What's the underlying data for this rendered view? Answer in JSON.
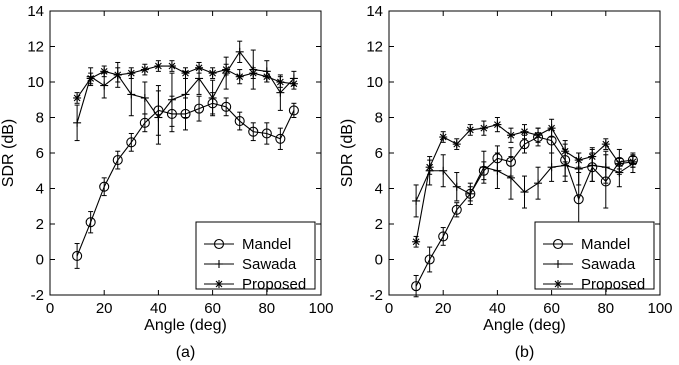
{
  "chart_data": [
    {
      "type": "line",
      "caption": "(a)",
      "xlabel": "Angle (deg)",
      "ylabel": "SDR (dB)",
      "xlim": [
        0,
        100
      ],
      "ylim": [
        -2,
        14
      ],
      "xticks": [
        0,
        20,
        40,
        60,
        80,
        100
      ],
      "yticks": [
        -2,
        0,
        2,
        4,
        6,
        8,
        10,
        12,
        14
      ],
      "legend_position": "bottom-right",
      "grid": false,
      "x": [
        10,
        15,
        20,
        25,
        30,
        35,
        40,
        45,
        50,
        55,
        60,
        65,
        70,
        75,
        80,
        85,
        90
      ],
      "series": [
        {
          "name": "Mandel",
          "marker": "circle",
          "values": [
            0.2,
            2.1,
            4.1,
            5.6,
            6.6,
            7.7,
            8.4,
            8.2,
            8.2,
            8.5,
            8.8,
            8.6,
            7.8,
            7.2,
            7.1,
            6.8,
            8.4
          ],
          "errors": [
            0.7,
            0.6,
            0.5,
            0.5,
            0.5,
            0.5,
            1.4,
            1.0,
            0.9,
            0.7,
            0.6,
            0.5,
            0.5,
            0.5,
            0.6,
            0.6,
            0.4
          ]
        },
        {
          "name": "Sawada",
          "marker": "plus",
          "values": [
            7.7,
            10.3,
            9.8,
            10.4,
            9.3,
            9.1,
            8.0,
            9.0,
            9.3,
            10.2,
            9.1,
            10.5,
            11.7,
            10.7,
            10.6,
            9.4,
            10.2
          ],
          "errors": [
            1.0,
            0.5,
            0.7,
            0.7,
            1.2,
            0.9,
            1.5,
            1.5,
            1.3,
            0.9,
            1.0,
            0.9,
            0.6,
            1.1,
            0.6,
            1.0,
            0.4
          ]
        },
        {
          "name": "Proposed",
          "marker": "star",
          "values": [
            9.1,
            10.2,
            10.6,
            10.4,
            10.5,
            10.7,
            10.9,
            10.9,
            10.5,
            10.8,
            10.5,
            10.7,
            10.3,
            10.5,
            10.3,
            10.0,
            9.9
          ],
          "errors": [
            0.3,
            0.3,
            0.3,
            0.4,
            0.3,
            0.3,
            0.3,
            0.3,
            0.3,
            0.3,
            0.3,
            0.3,
            0.4,
            0.3,
            0.3,
            0.3,
            0.3
          ]
        }
      ]
    },
    {
      "type": "line",
      "caption": "(b)",
      "xlabel": "Angle (deg)",
      "ylabel": "SDR (dB)",
      "xlim": [
        0,
        100
      ],
      "ylim": [
        -2,
        14
      ],
      "xticks": [
        0,
        20,
        40,
        60,
        80,
        100
      ],
      "yticks": [
        -2,
        0,
        2,
        4,
        6,
        8,
        10,
        12,
        14
      ],
      "legend_position": "bottom-right",
      "grid": false,
      "x": [
        10,
        15,
        20,
        25,
        30,
        35,
        40,
        45,
        50,
        55,
        60,
        65,
        70,
        75,
        80,
        85,
        90
      ],
      "series": [
        {
          "name": "Mandel",
          "marker": "circle",
          "values": [
            -1.5,
            0.0,
            1.3,
            2.8,
            3.7,
            5.0,
            5.7,
            5.5,
            6.5,
            6.9,
            6.7,
            5.6,
            3.4,
            5.2,
            4.4,
            5.5,
            5.6
          ],
          "errors": [
            0.6,
            0.7,
            0.5,
            0.4,
            0.4,
            0.5,
            0.7,
            0.8,
            0.5,
            0.5,
            0.7,
            0.9,
            1.5,
            0.8,
            1.5,
            0.7,
            0.4
          ]
        },
        {
          "name": "Sawada",
          "marker": "plus",
          "values": [
            3.3,
            5.0,
            5.0,
            4.1,
            3.7,
            5.2,
            5.0,
            4.6,
            3.8,
            4.3,
            5.2,
            5.3,
            5.1,
            5.3,
            5.2,
            4.9,
            5.4
          ],
          "errors": [
            0.9,
            0.8,
            0.9,
            0.8,
            0.6,
            0.9,
            1.0,
            1.2,
            0.9,
            0.9,
            0.8,
            0.9,
            0.9,
            0.9,
            0.9,
            0.8,
            0.5
          ]
        },
        {
          "name": "Proposed",
          "marker": "star",
          "values": [
            1.0,
            5.2,
            6.9,
            6.5,
            7.3,
            7.4,
            7.6,
            7.0,
            7.2,
            7.0,
            7.4,
            6.1,
            5.6,
            5.8,
            6.5,
            5.4,
            5.5
          ],
          "errors": [
            0.3,
            0.4,
            0.3,
            0.3,
            0.3,
            0.4,
            0.4,
            0.4,
            0.4,
            0.4,
            0.5,
            0.6,
            0.4,
            0.5,
            0.3,
            0.3,
            0.3
          ]
        }
      ]
    }
  ]
}
